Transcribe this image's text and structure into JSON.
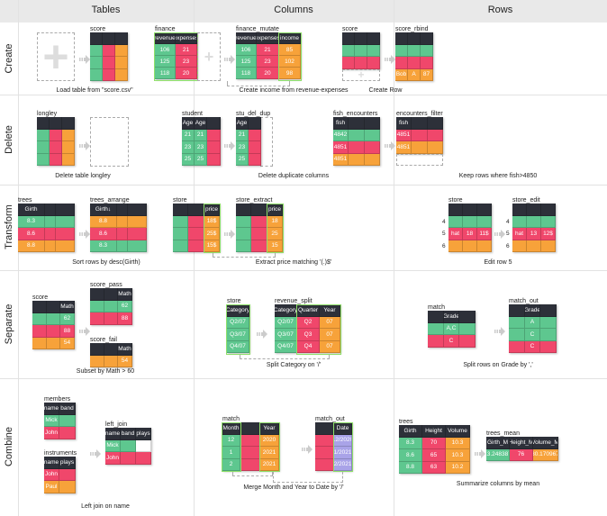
{
  "headers": {
    "tables": "Tables",
    "columns": "Columns",
    "rows": "Rows"
  },
  "row_labels": {
    "create": "Create",
    "delete": "Delete",
    "transform": "Transform",
    "separate": "Separate",
    "combine": "Combine"
  },
  "colors": {
    "g": "#5ec78f",
    "r": "#f0476b",
    "o": "#f7a23a",
    "p": "#a9a3e8",
    "w": "#ffffff",
    "d": "#2d3039"
  },
  "captions": {
    "load": "Load table from \"score.csv\"",
    "create_income": "Create income from revenue-expenses",
    "create_row": "Create Row",
    "delete_table": "Delete table longley",
    "delete_dup": "Delete duplicate columns",
    "keep_rows": "Keep rows where fish>4850",
    "sort": "Sort rows by desc(Girth)",
    "extract": "Extract price matching '(.)$'",
    "edit": "Edit row 5",
    "subset": "Subset by Math > 60",
    "split_cat": "Split Category on '/'",
    "split_rows": "Split rows on Grade by ','",
    "left_join": "Left join on name",
    "merge": "Merge Month and Year to Date by '/'",
    "summarize": "Summarize columns by mean"
  },
  "tables": {
    "score": {
      "name": "score",
      "cols": [
        "",
        "",
        ""
      ],
      "rows": [
        {
          "cells": [
            "",
            "",
            ""
          ],
          "fills": "gro"
        },
        {
          "cells": [
            "",
            "",
            ""
          ],
          "fills": "gro"
        },
        {
          "cells": [
            "",
            "",
            ""
          ],
          "fills": "gro"
        }
      ]
    },
    "finance": {
      "name": "finance",
      "cols": [
        "revenue",
        "expenses"
      ],
      "rows": [
        {
          "cells": [
            "106",
            "21"
          ],
          "fills": "gr"
        },
        {
          "cells": [
            "125",
            "23"
          ],
          "fills": "gr"
        },
        {
          "cells": [
            "118",
            "20"
          ],
          "fills": "gr"
        }
      ]
    },
    "finance_mutate": {
      "name": "finance_mutate",
      "cols": [
        "revenue",
        "expenses",
        "income"
      ],
      "rows": [
        {
          "cells": [
            "106",
            "21",
            "85"
          ],
          "fills": "gro"
        },
        {
          "cells": [
            "125",
            "23",
            "102"
          ],
          "fills": "gro"
        },
        {
          "cells": [
            "118",
            "20",
            "98"
          ],
          "fills": "gro"
        }
      ]
    },
    "score_r": {
      "name": "score",
      "cols": [
        "",
        "",
        ""
      ],
      "rows": [
        {
          "cells": [
            "",
            "",
            ""
          ],
          "fills": "ggg"
        },
        {
          "cells": [
            "",
            "",
            ""
          ],
          "fills": "rrr"
        }
      ]
    },
    "score_rbind": {
      "name": "score_rbind",
      "cols": [
        "",
        "",
        ""
      ],
      "rows": [
        {
          "cells": [
            "",
            "",
            ""
          ],
          "fills": "ggg"
        },
        {
          "cells": [
            "",
            "",
            ""
          ],
          "fills": "rrr"
        },
        {
          "cells": [
            "Bob",
            "A",
            "87"
          ],
          "fills": "ooo"
        }
      ]
    },
    "longley": {
      "name": "longley",
      "cols": [
        "",
        "",
        ""
      ],
      "rows": [
        {
          "cells": [
            "",
            "",
            ""
          ],
          "fills": "gro"
        },
        {
          "cells": [
            "",
            "",
            ""
          ],
          "fills": "gro"
        },
        {
          "cells": [
            "",
            "",
            ""
          ],
          "fills": "gro"
        }
      ]
    },
    "student": {
      "name": "student",
      "cols": [
        "Age",
        "Age",
        ""
      ],
      "rows": [
        {
          "cells": [
            "21",
            "21",
            ""
          ],
          "fills": "ggr"
        },
        {
          "cells": [
            "23",
            "23",
            ""
          ],
          "fills": "ggr"
        },
        {
          "cells": [
            "25",
            "25",
            ""
          ],
          "fills": "ggr"
        }
      ]
    },
    "stu_del_dup": {
      "name": "stu_del_dup",
      "cols": [
        "Age",
        ""
      ],
      "rows": [
        {
          "cells": [
            "21",
            ""
          ],
          "fills": "gr"
        },
        {
          "cells": [
            "23",
            ""
          ],
          "fills": "gr"
        },
        {
          "cells": [
            "25",
            ""
          ],
          "fills": "gr"
        }
      ]
    },
    "fish_encounters": {
      "name": "fish_encounters",
      "cols": [
        "fish",
        "",
        ""
      ],
      "rows": [
        {
          "cells": [
            "4842",
            "",
            ""
          ],
          "fills": "ggg"
        },
        {
          "cells": [
            "4851",
            "",
            ""
          ],
          "fills": "rrr"
        },
        {
          "cells": [
            "4851",
            "",
            ""
          ],
          "fills": "ooo"
        }
      ]
    },
    "encounters_filter": {
      "name": "encounters_filter",
      "cols": [
        "fish",
        "",
        ""
      ],
      "rows": [
        {
          "cells": [
            "4851",
            "",
            ""
          ],
          "fills": "rrr"
        },
        {
          "cells": [
            "4851",
            "",
            ""
          ],
          "fills": "ooo"
        }
      ]
    },
    "trees": {
      "name": "trees",
      "cols": [
        "Girth",
        "",
        ""
      ],
      "rows": [
        {
          "cells": [
            "8.3",
            "",
            ""
          ],
          "fills": "ggg"
        },
        {
          "cells": [
            "8.6",
            "",
            ""
          ],
          "fills": "rrr"
        },
        {
          "cells": [
            "8.8",
            "",
            ""
          ],
          "fills": "ooo"
        }
      ]
    },
    "trees_arrange": {
      "name": "trees_arrange",
      "cols": [
        "Girth↓",
        "",
        ""
      ],
      "rows": [
        {
          "cells": [
            "8.8",
            "",
            ""
          ],
          "fills": "ooo"
        },
        {
          "cells": [
            "8.6",
            "",
            ""
          ],
          "fills": "rrr"
        },
        {
          "cells": [
            "8.3",
            "",
            ""
          ],
          "fills": "ggg"
        }
      ]
    },
    "store": {
      "name": "store",
      "cols": [
        "",
        "",
        "price"
      ],
      "rows": [
        {
          "cells": [
            "",
            "",
            "18$"
          ],
          "fills": "gro"
        },
        {
          "cells": [
            "",
            "",
            "25$"
          ],
          "fills": "gro"
        },
        {
          "cells": [
            "",
            "",
            "15$"
          ],
          "fills": "gro"
        }
      ]
    },
    "store_extract": {
      "name": "store_extract",
      "cols": [
        "",
        "",
        "price"
      ],
      "rows": [
        {
          "cells": [
            "",
            "",
            "18"
          ],
          "fills": "gro"
        },
        {
          "cells": [
            "",
            "",
            "25"
          ],
          "fills": "gro"
        },
        {
          "cells": [
            "",
            "",
            "15"
          ],
          "fills": "gro"
        }
      ]
    },
    "store_rows": {
      "name": "store",
      "row_ids": [
        "4",
        "5",
        "6"
      ],
      "cols": [
        "",
        "",
        ""
      ],
      "rows": [
        {
          "cells": [
            "",
            "",
            ""
          ],
          "fills": "ggg"
        },
        {
          "cells": [
            "hat",
            "18",
            "11$"
          ],
          "fills": "rrr"
        },
        {
          "cells": [
            "",
            "",
            ""
          ],
          "fills": "ooo"
        }
      ]
    },
    "store_edit": {
      "name": "store_edit",
      "row_ids": [
        "4",
        "5",
        "6"
      ],
      "cols": [
        "",
        "",
        ""
      ],
      "rows": [
        {
          "cells": [
            "",
            "",
            ""
          ],
          "fills": "ggg"
        },
        {
          "cells": [
            "hat",
            "13",
            "12$"
          ],
          "fills": "rrr"
        },
        {
          "cells": [
            "",
            "",
            ""
          ],
          "fills": "ooo"
        }
      ]
    },
    "score_sep": {
      "name": "score",
      "cols": [
        "",
        "",
        "Math"
      ],
      "rows": [
        {
          "cells": [
            "",
            "",
            "62"
          ],
          "fills": "ggg"
        },
        {
          "cells": [
            "",
            "",
            "88"
          ],
          "fills": "rrr"
        },
        {
          "cells": [
            "",
            "",
            "54"
          ],
          "fills": "ooo"
        }
      ]
    },
    "score_pass": {
      "name": "score_pass",
      "cols": [
        "",
        "",
        "Math"
      ],
      "rows": [
        {
          "cells": [
            "",
            "",
            "62"
          ],
          "fills": "ggg"
        },
        {
          "cells": [
            "",
            "",
            "88"
          ],
          "fills": "rrr"
        }
      ]
    },
    "score_fail": {
      "name": "score_fail",
      "cols": [
        "",
        "",
        "Math"
      ],
      "rows": [
        {
          "cells": [
            "",
            "",
            "54"
          ],
          "fills": "ooo"
        }
      ]
    },
    "store_cat": {
      "name": "store",
      "cols": [
        "Category"
      ],
      "rows": [
        {
          "cells": [
            "Q2/07"
          ],
          "fills": "g"
        },
        {
          "cells": [
            "Q3/07"
          ],
          "fills": "g"
        },
        {
          "cells": [
            "Q4/07"
          ],
          "fills": "g"
        }
      ]
    },
    "revenue_split": {
      "name": "revenue_split",
      "cols": [
        "Category",
        "Quarter",
        "Year"
      ],
      "rows": [
        {
          "cells": [
            "Q2/07",
            "Q2",
            "07"
          ],
          "fills": "gro"
        },
        {
          "cells": [
            "Q3/07",
            "Q3",
            "07"
          ],
          "fills": "gro"
        },
        {
          "cells": [
            "Q4/07",
            "Q4",
            "07"
          ],
          "fills": "gro"
        }
      ]
    },
    "match_sep": {
      "name": "match",
      "cols": [
        "",
        "Grade",
        ""
      ],
      "rows": [
        {
          "cells": [
            "",
            "A,C",
            ""
          ],
          "fills": "ggg"
        },
        {
          "cells": [
            "",
            "C",
            ""
          ],
          "fills": "rrr"
        }
      ]
    },
    "match_out_sep": {
      "name": "match_out",
      "cols": [
        "",
        "Grade",
        ""
      ],
      "rows": [
        {
          "cells": [
            "",
            "A",
            ""
          ],
          "fills": "ggg"
        },
        {
          "cells": [
            "",
            "C",
            ""
          ],
          "fills": "ggg"
        },
        {
          "cells": [
            "",
            "C",
            ""
          ],
          "fills": "rrr"
        }
      ]
    },
    "members": {
      "name": "members",
      "cols": [
        "name",
        "band"
      ],
      "rows": [
        {
          "cells": [
            "Mick",
            ""
          ],
          "fills": "gg"
        },
        {
          "cells": [
            "John",
            ""
          ],
          "fills": "rr"
        }
      ]
    },
    "instruments": {
      "name": "instruments",
      "cols": [
        "name",
        "plays"
      ],
      "rows": [
        {
          "cells": [
            "John",
            ""
          ],
          "fills": "rr"
        },
        {
          "cells": [
            "Paul",
            ""
          ],
          "fills": "oo"
        }
      ]
    },
    "left_join": {
      "name": "left_join",
      "cols": [
        "name",
        "band",
        "plays"
      ],
      "rows": [
        {
          "cells": [
            "Mick",
            "",
            ""
          ],
          "fills": "ggw"
        },
        {
          "cells": [
            "John",
            "",
            ""
          ],
          "fills": "rrr"
        }
      ]
    },
    "match_c": {
      "name": "match",
      "cols": [
        "Month",
        "",
        "Year"
      ],
      "rows": [
        {
          "cells": [
            "12",
            "",
            "2020"
          ],
          "fills": "gro"
        },
        {
          "cells": [
            "1",
            "",
            "2021"
          ],
          "fills": "gro"
        },
        {
          "cells": [
            "2",
            "",
            "2021"
          ],
          "fills": "gro"
        }
      ]
    },
    "match_out_c": {
      "name": "match_out",
      "cols": [
        "",
        "Date"
      ],
      "rows": [
        {
          "cells": [
            "",
            "12/2020"
          ],
          "fills": "rp"
        },
        {
          "cells": [
            "",
            "1/2021"
          ],
          "fills": "rp"
        },
        {
          "cells": [
            "",
            "2/2021"
          ],
          "fills": "rp"
        }
      ]
    },
    "trees_c": {
      "name": "trees",
      "cols": [
        "Girth",
        "Height",
        "Volume"
      ],
      "rows": [
        {
          "cells": [
            "8.3",
            "70",
            "10.3"
          ],
          "fills": "gro"
        },
        {
          "cells": [
            "8.6",
            "65",
            "10.3"
          ],
          "fills": "gro"
        },
        {
          "cells": [
            "8.8",
            "63",
            "10.2"
          ],
          "fills": "gro"
        }
      ]
    },
    "trees_mean": {
      "name": "trees_mean",
      "cols": [
        "Girth_M",
        "Height_M",
        "Volume_M"
      ],
      "rows": [
        {
          "cells": [
            "13.248387",
            "76",
            "30.170967"
          ],
          "fills": "gro"
        }
      ]
    }
  }
}
